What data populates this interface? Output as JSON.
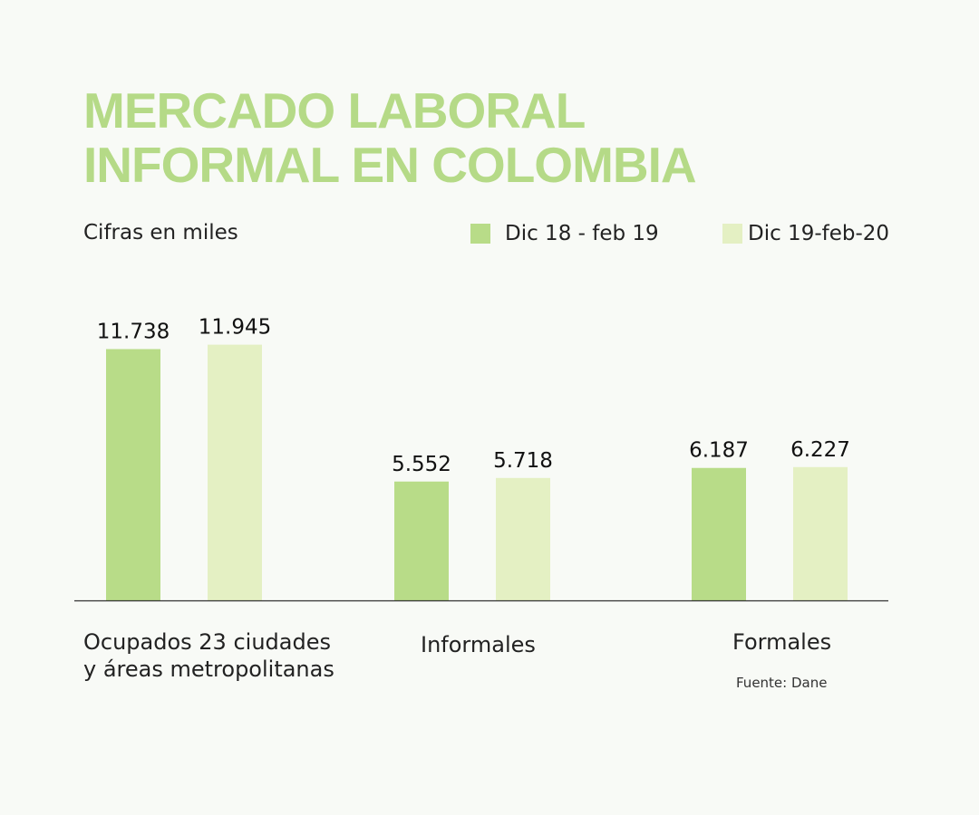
{
  "title_lines": [
    "MERCADO LABORAL",
    "INFORMAL EN COLOMBIA"
  ],
  "subtitle": "Cifras en miles",
  "source": "Fuente: Dane",
  "colors": {
    "title": "#b5da87",
    "series1": "#b8dc88",
    "series2": "#e4f0c3",
    "axis": "#333333"
  },
  "chart_data": {
    "type": "bar",
    "categories": [
      "Ocupados 23 ciudades\ny áreas metropolitanas",
      "Informales",
      "Formales"
    ],
    "series": [
      {
        "name": "Dic 18 - feb 19",
        "values": [
          11738,
          5552,
          6187
        ],
        "labels": [
          "11.738",
          "5.552",
          "6.187"
        ]
      },
      {
        "name": "Dic 19-feb-20",
        "values": [
          11945,
          5718,
          6227
        ],
        "labels": [
          "11.945",
          "5.718",
          "6.227"
        ]
      }
    ],
    "legend": "top-right",
    "grid": false
  }
}
